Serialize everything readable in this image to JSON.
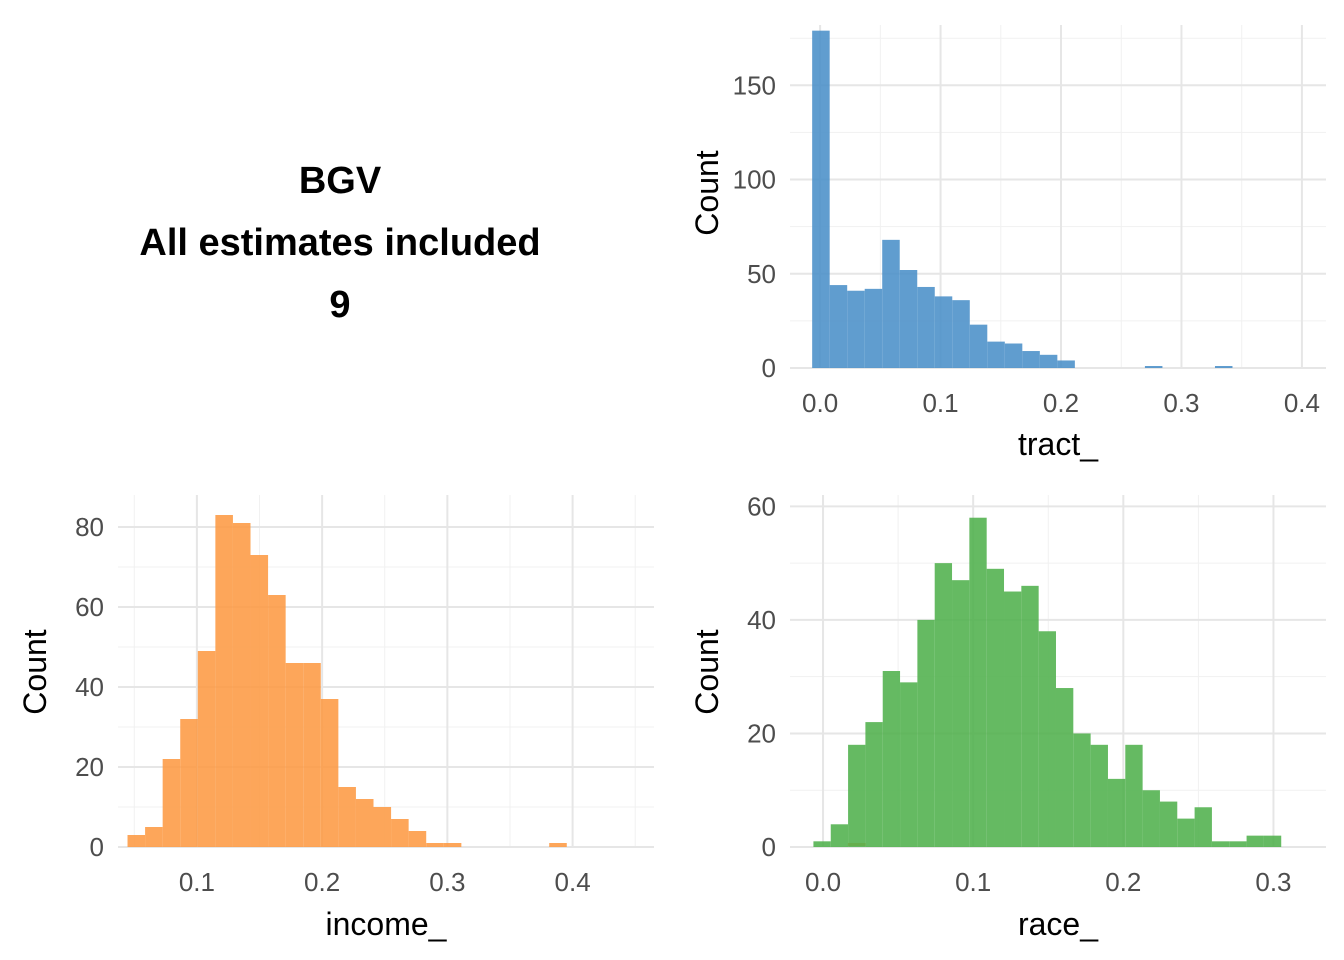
{
  "title": {
    "line1": "BGV",
    "line2": "All estimates included",
    "line3": "9"
  },
  "chart_data": [
    {
      "type": "bar",
      "subtype": "histogram",
      "xlabel": "tract_",
      "ylabel": "Count",
      "color": "#4a90c8",
      "xlim": [
        -0.025,
        0.42
      ],
      "ylim": [
        0,
        182
      ],
      "xticks": [
        "0.0",
        "0.1",
        "0.2",
        "0.3",
        "0.4"
      ],
      "yticks": [
        "0",
        "50",
        "100",
        "150"
      ],
      "grid": true,
      "bin_start": -0.0066,
      "bin_width": 0.01454,
      "values": [
        179,
        44,
        41,
        42,
        68,
        52,
        43,
        38,
        36,
        23,
        14,
        13,
        9,
        7,
        4,
        0,
        0,
        0,
        0,
        1,
        0,
        0,
        0,
        1,
        0,
        0,
        0,
        0,
        0,
        0,
        0,
        0,
        0,
        0,
        0,
        0,
        0,
        0,
        0,
        1
      ]
    },
    {
      "type": "bar",
      "subtype": "histogram",
      "xlabel": "income_",
      "ylabel": "Count",
      "color": "#fd9a43",
      "xlim": [
        0.037,
        0.465
      ],
      "ylim": [
        0,
        88
      ],
      "xticks": [
        "0.1",
        "0.2",
        "0.3",
        "0.4"
      ],
      "yticks": [
        "0",
        "20",
        "40",
        "60",
        "80"
      ],
      "grid": true,
      "bin_start": 0.0446,
      "bin_width": 0.01403,
      "values": [
        3,
        5,
        22,
        32,
        49,
        83,
        81,
        73,
        63,
        46,
        46,
        37,
        15,
        12,
        10,
        7,
        4,
        1,
        1,
        0,
        0,
        0,
        0,
        0,
        1,
        0,
        0,
        0,
        0,
        0,
        0,
        0,
        0,
        0,
        0,
        0,
        0,
        0,
        0,
        0,
        0,
        1
      ]
    },
    {
      "type": "bar",
      "subtype": "histogram",
      "xlabel": "race_",
      "ylabel": "Count",
      "color": "#50b04c",
      "xlim": [
        -0.022,
        0.335
      ],
      "ylim": [
        0,
        62
      ],
      "xticks": [
        "0.0",
        "0.1",
        "0.2",
        "0.3"
      ],
      "yticks": [
        "0",
        "20",
        "40",
        "60"
      ],
      "grid": true,
      "bin_start": -0.0064,
      "bin_width": 0.01154,
      "values": [
        1,
        4,
        18,
        22,
        31,
        29,
        40,
        50,
        47,
        58,
        49,
        45,
        46,
        38,
        28,
        20,
        18,
        12,
        18,
        10,
        8,
        5,
        7,
        1,
        1,
        2,
        2,
        0,
        0,
        0,
        0,
        0,
        0,
        0,
        0,
        0,
        0,
        1
      ]
    }
  ]
}
